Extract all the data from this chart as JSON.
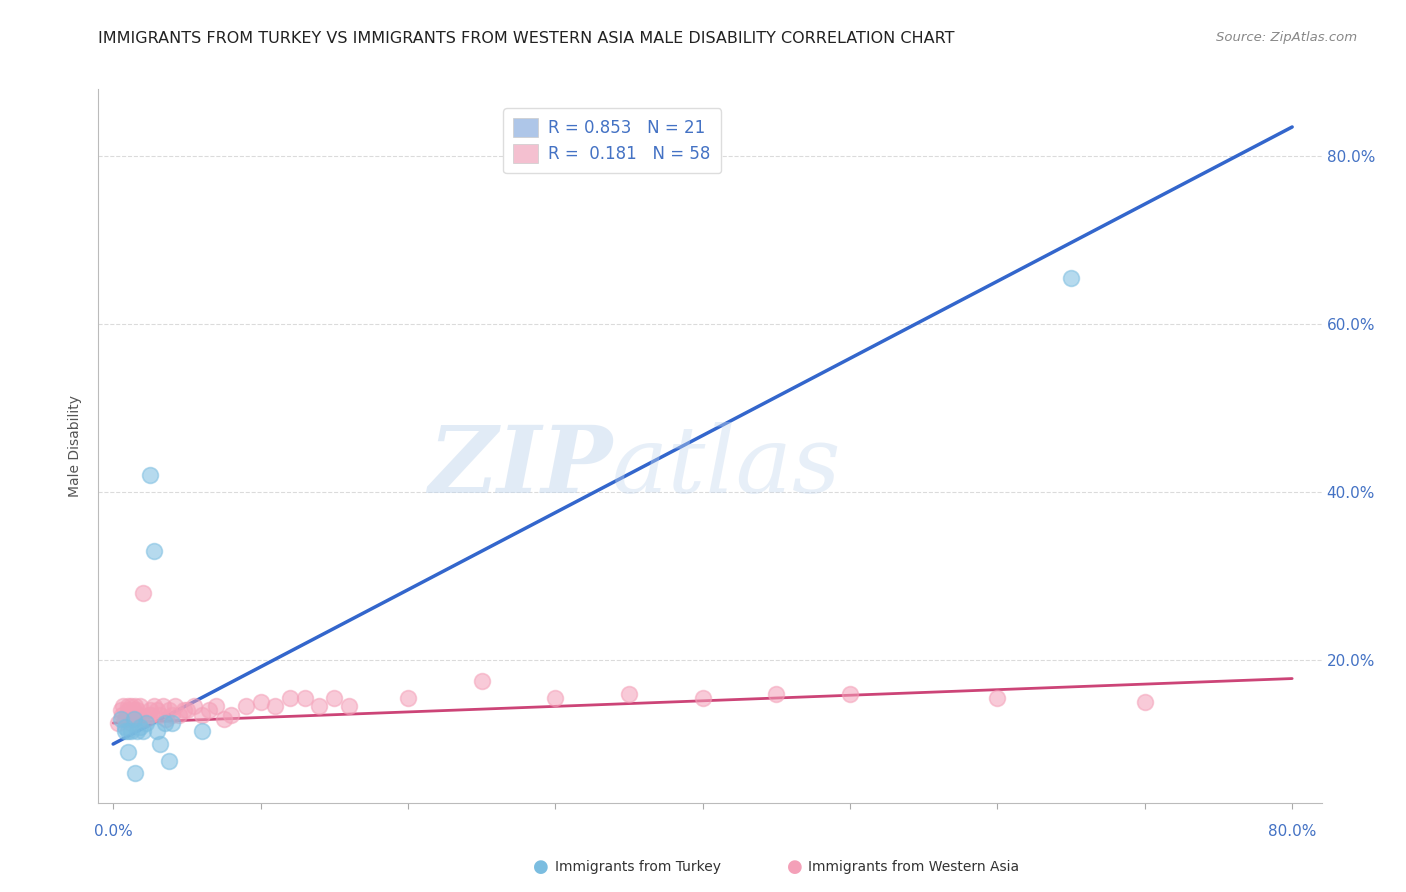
{
  "title": "IMMIGRANTS FROM TURKEY VS IMMIGRANTS FROM WESTERN ASIA MALE DISABILITY CORRELATION CHART",
  "source": "Source: ZipAtlas.com",
  "ylabel": "Male Disability",
  "xlim": [
    -0.01,
    0.82
  ],
  "ylim": [
    0.03,
    0.88
  ],
  "yticks": [
    0.2,
    0.4,
    0.6,
    0.8
  ],
  "ytick_labels": [
    "20.0%",
    "40.0%",
    "60.0%",
    "80.0%"
  ],
  "xticks": [
    0.0,
    0.1,
    0.2,
    0.3,
    0.4,
    0.5,
    0.6,
    0.7,
    0.8
  ],
  "legend_r1": "R = 0.853",
  "legend_n1": "N = 21",
  "legend_r2": "R =  0.181",
  "legend_n2": "N = 58",
  "series1_name": "Immigrants from Turkey",
  "series2_name": "Immigrants from Western Asia",
  "series1_color": "#7bbde0",
  "series2_color": "#f4a0b8",
  "series1_line_color": "#3366cc",
  "series2_line_color": "#cc4477",
  "watermark_zip": "ZIP",
  "watermark_atlas": "atlas",
  "blue_x": [
    0.005,
    0.008,
    0.01,
    0.012,
    0.014,
    0.016,
    0.018,
    0.02,
    0.022,
    0.025,
    0.028,
    0.03,
    0.032,
    0.035,
    0.038,
    0.04,
    0.06,
    0.65,
    0.01,
    0.015,
    0.008
  ],
  "blue_y": [
    0.13,
    0.12,
    0.115,
    0.115,
    0.13,
    0.115,
    0.12,
    0.115,
    0.125,
    0.42,
    0.33,
    0.115,
    0.1,
    0.125,
    0.08,
    0.125,
    0.115,
    0.655,
    0.09,
    0.065,
    0.115
  ],
  "pink_x": [
    0.003,
    0.005,
    0.006,
    0.007,
    0.008,
    0.009,
    0.01,
    0.01,
    0.011,
    0.012,
    0.012,
    0.013,
    0.014,
    0.015,
    0.015,
    0.016,
    0.017,
    0.018,
    0.019,
    0.02,
    0.022,
    0.024,
    0.025,
    0.026,
    0.028,
    0.03,
    0.032,
    0.034,
    0.036,
    0.038,
    0.04,
    0.042,
    0.045,
    0.048,
    0.05,
    0.055,
    0.06,
    0.065,
    0.07,
    0.075,
    0.08,
    0.09,
    0.1,
    0.11,
    0.12,
    0.13,
    0.14,
    0.15,
    0.16,
    0.2,
    0.25,
    0.3,
    0.35,
    0.4,
    0.45,
    0.5,
    0.6,
    0.7
  ],
  "pink_y": [
    0.125,
    0.14,
    0.135,
    0.145,
    0.13,
    0.13,
    0.14,
    0.145,
    0.135,
    0.145,
    0.125,
    0.13,
    0.14,
    0.135,
    0.145,
    0.14,
    0.135,
    0.145,
    0.13,
    0.28,
    0.13,
    0.135,
    0.14,
    0.135,
    0.145,
    0.14,
    0.135,
    0.145,
    0.13,
    0.14,
    0.135,
    0.145,
    0.135,
    0.14,
    0.14,
    0.145,
    0.135,
    0.14,
    0.145,
    0.13,
    0.135,
    0.145,
    0.15,
    0.145,
    0.155,
    0.155,
    0.145,
    0.155,
    0.145,
    0.155,
    0.175,
    0.155,
    0.16,
    0.155,
    0.16,
    0.16,
    0.155,
    0.15
  ],
  "blue_line_x": [
    0.0,
    0.8
  ],
  "blue_line_y": [
    0.1,
    0.835
  ],
  "pink_line_x": [
    0.0,
    0.8
  ],
  "pink_line_y": [
    0.125,
    0.178
  ],
  "title_fontsize": 11.5,
  "source_fontsize": 9.5,
  "axis_label_fontsize": 10,
  "tick_fontsize": 11,
  "legend_fontsize": 12,
  "background_color": "#ffffff",
  "grid_color": "#cccccc",
  "grid_alpha": 0.7,
  "scatter_size": 130,
  "scatter_alpha": 0.55
}
